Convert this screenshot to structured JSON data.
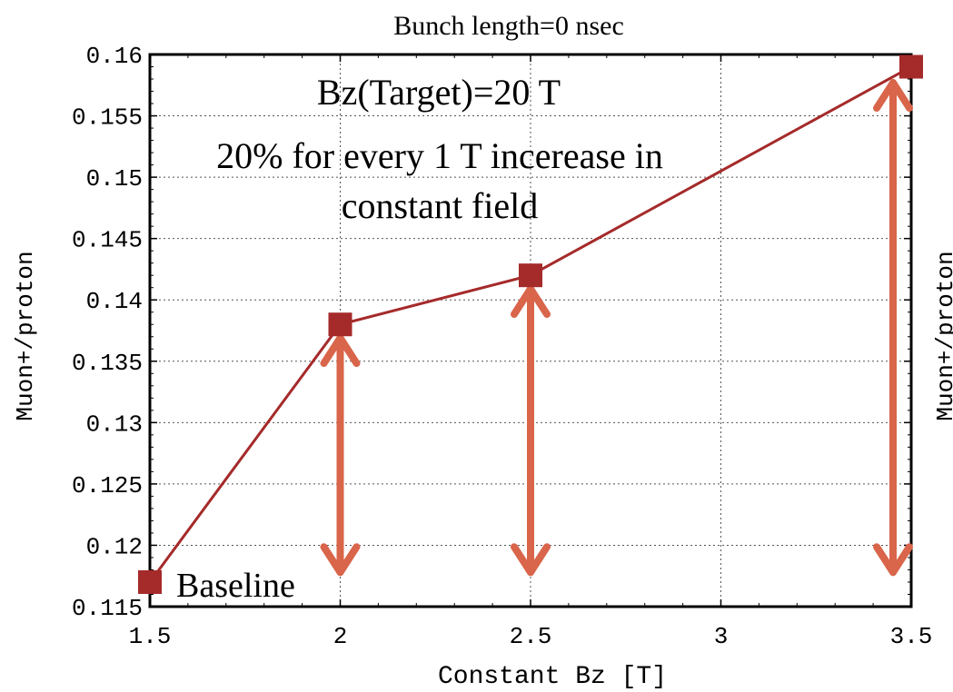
{
  "chart_data": {
    "type": "line",
    "title": "Bunch length=0 nsec",
    "xlabel": "Constant Bz [T]",
    "ylabel": "Muon+/proton",
    "xlim": [
      1.5,
      3.5
    ],
    "ylim": [
      0.115,
      0.16
    ],
    "x_ticks": [
      "1.5",
      "2",
      "2.5",
      "3",
      "3.5"
    ],
    "y_ticks": [
      "0.115",
      "0.12",
      "0.125",
      "0.13",
      "0.135",
      "0.14",
      "0.145",
      "0.15",
      "0.155",
      "0.16"
    ],
    "grid": true,
    "x": [
      1.5,
      2.0,
      2.5,
      3.5
    ],
    "y": [
      0.117,
      0.138,
      0.142,
      0.159
    ],
    "annotations": {
      "target_field": "Bz(Target)=20 T",
      "increase_line1": "20% for every 1 T incerease in",
      "increase_line2": "constant field",
      "baseline": "Baseline"
    },
    "arrows": [
      {
        "x": 2.0,
        "y_from": 0.1175,
        "y_to": 0.1372
      },
      {
        "x": 2.5,
        "y_from": 0.1175,
        "y_to": 0.1412
      },
      {
        "x": 3.5,
        "y_from": 0.1175,
        "y_to": 0.158
      }
    ],
    "colors": {
      "series": "#a52a2a",
      "arrow": "#d9654a",
      "grid": "#555555"
    }
  },
  "offpage_label": "Muon+/proton"
}
